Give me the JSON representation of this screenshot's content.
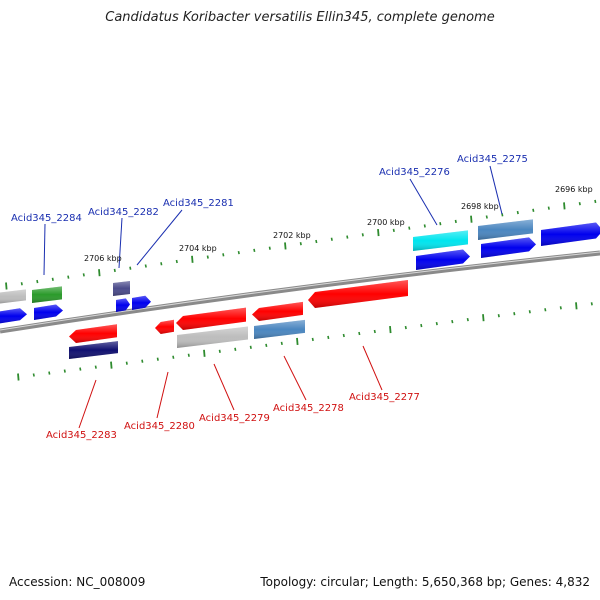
{
  "title": "Candidatus Koribacter versatilis Ellin345, complete genome",
  "footer": {
    "accession": "Accession: NC_008009",
    "topology": "Topology: circular; Length: 5,650,368 bp; Genes: 4,832"
  },
  "scale_labels": [
    "2706 kbp",
    "2704 kbp",
    "2702 kbp",
    "2700 kbp",
    "2698 kbp",
    "2696 kbp"
  ],
  "gene_labels_top": [
    "Acid345_2284",
    "Acid345_2282",
    "Acid345_2281",
    "Acid345_2276",
    "Acid345_2275"
  ],
  "gene_labels_bottom": [
    "Acid345_2283",
    "Acid345_2280",
    "Acid345_2279",
    "Acid345_2278",
    "Acid345_2277"
  ],
  "colors": {
    "backbone": "#8a8a8a",
    "tick": "#2e8b2e",
    "gene_red": "#ff0000",
    "gene_blue": "#0000ee",
    "gene_gray": "#bdbdbd",
    "gene_green": "#2a9a2a",
    "gene_cyan": "#00e5ee",
    "gene_steel": "#4a86c0",
    "gene_navy": "#101070",
    "gene_slate": "#4a4a8a",
    "label_top": "#1a2fb0",
    "label_bottom": "#d01010"
  }
}
